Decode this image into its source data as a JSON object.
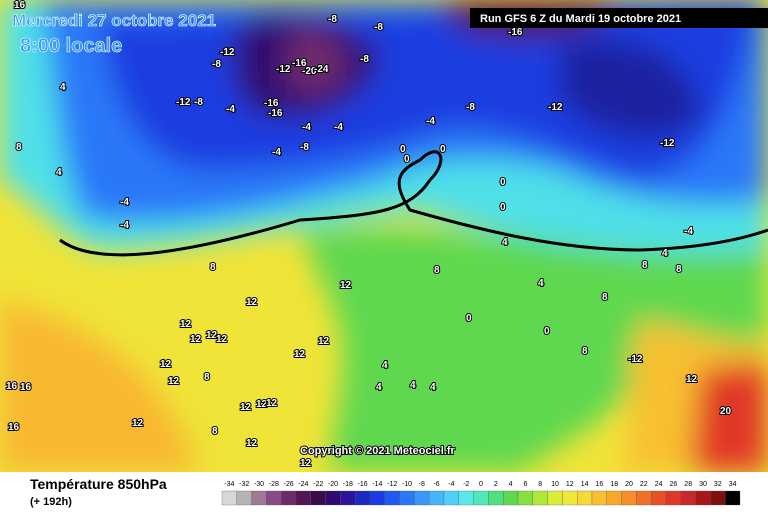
{
  "header": {
    "date": "Mercredi 27 octobre 2021",
    "time": "8:00 locale",
    "run": "Run GFS 6 Z du Mardi 19 octobre 2021"
  },
  "footer": {
    "title": "Température 850hPa",
    "lead": "(+ 192h)",
    "copyright": "Copyright © 2021 Meteociel.fr"
  },
  "legend": {
    "values": [
      -34,
      -32,
      -30,
      -28,
      -26,
      -24,
      -22,
      -20,
      -18,
      -16,
      -14,
      -12,
      -10,
      -8,
      -6,
      -4,
      -2,
      0,
      2,
      4,
      6,
      8,
      10,
      12,
      14,
      16,
      18,
      20,
      22,
      24,
      26,
      28,
      30,
      32,
      34
    ],
    "colors": [
      "#d8d8d8",
      "#b4b4b4",
      "#a07898",
      "#8a4a86",
      "#6e2a6e",
      "#521652",
      "#3a0a4a",
      "#300a70",
      "#2a14a0",
      "#1e28c0",
      "#1a3ce0",
      "#1e5af0",
      "#2a78f8",
      "#3a96fc",
      "#48b4fc",
      "#50d0f8",
      "#58e8e8",
      "#50e8b8",
      "#4ee080",
      "#5ed850",
      "#88e040",
      "#b0e838",
      "#d8ec38",
      "#f0e838",
      "#f8d838",
      "#f8c030",
      "#f8a828",
      "#f88c28",
      "#f07028",
      "#e85028",
      "#e03828",
      "#c82828",
      "#a81818",
      "#801010",
      "#000000"
    ]
  },
  "contour_labels": [
    16,
    -8,
    -8,
    -16,
    -12,
    -8,
    -12,
    -16,
    -20,
    -24,
    -8,
    4,
    -12,
    -8,
    -4,
    -16,
    -16,
    -8,
    -12,
    -12,
    -4,
    -4,
    -8,
    -4,
    -4,
    0,
    0,
    0,
    8,
    4,
    -4,
    -4,
    0,
    0,
    8,
    12,
    8,
    4,
    -4,
    4,
    8,
    8,
    4,
    8,
    12,
    12,
    12,
    12,
    12,
    12,
    12,
    0,
    0,
    4,
    4,
    4,
    4,
    8,
    -12,
    12,
    20,
    16,
    16,
    16,
    12,
    12,
    12,
    12,
    12,
    12,
    8,
    12,
    8,
    12
  ]
}
